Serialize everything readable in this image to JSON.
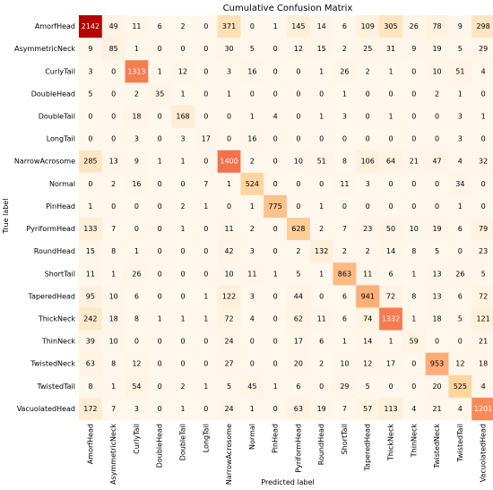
{
  "chart_data": {
    "type": "heatmap",
    "title": "Cumulative Confusion Matrix",
    "xlabel": "Predicted label",
    "ylabel": "True label",
    "labels": [
      "AmorfHead",
      "AsymmetricNeck",
      "CurlyTail",
      "DoubleHead",
      "DoubleTail",
      "LongTail",
      "NarrowAcrosome",
      "Normal",
      "PinHead",
      "PyriformHead",
      "RoundHead",
      "ShortTail",
      "TaperedHead",
      "ThickNeck",
      "ThinNeck",
      "TwistedNeck",
      "TwistedTail",
      "VacuolatedHead"
    ],
    "matrix": [
      [
        2142,
        49,
        11,
        6,
        2,
        0,
        371,
        0,
        1,
        145,
        14,
        6,
        109,
        305,
        26,
        78,
        9,
        298
      ],
      [
        9,
        85,
        1,
        0,
        0,
        0,
        30,
        5,
        0,
        12,
        15,
        2,
        25,
        31,
        9,
        19,
        5,
        29
      ],
      [
        3,
        0,
        1313,
        1,
        12,
        0,
        3,
        16,
        0,
        0,
        1,
        26,
        2,
        1,
        0,
        10,
        51,
        4
      ],
      [
        5,
        0,
        2,
        35,
        1,
        0,
        1,
        0,
        0,
        0,
        0,
        1,
        0,
        0,
        0,
        2,
        1,
        0
      ],
      [
        0,
        0,
        18,
        0,
        168,
        0,
        0,
        1,
        4,
        0,
        1,
        3,
        0,
        1,
        0,
        0,
        3,
        1
      ],
      [
        0,
        0,
        3,
        0,
        3,
        17,
        0,
        16,
        0,
        0,
        0,
        0,
        0,
        0,
        0,
        0,
        3,
        0
      ],
      [
        285,
        13,
        9,
        1,
        1,
        0,
        1400,
        2,
        0,
        10,
        51,
        8,
        106,
        64,
        21,
        47,
        4,
        32
      ],
      [
        0,
        2,
        16,
        0,
        0,
        7,
        1,
        524,
        0,
        0,
        0,
        11,
        3,
        0,
        0,
        0,
        34,
        0
      ],
      [
        1,
        0,
        0,
        0,
        2,
        1,
        0,
        1,
        775,
        0,
        1,
        0,
        0,
        0,
        0,
        0,
        1,
        0
      ],
      [
        133,
        7,
        0,
        0,
        1,
        0,
        11,
        2,
        0,
        628,
        2,
        7,
        23,
        50,
        10,
        19,
        6,
        79
      ],
      [
        15,
        8,
        1,
        0,
        0,
        0,
        42,
        3,
        0,
        2,
        132,
        2,
        2,
        14,
        8,
        5,
        0,
        23
      ],
      [
        11,
        1,
        26,
        0,
        0,
        0,
        10,
        11,
        1,
        5,
        1,
        863,
        11,
        6,
        1,
        13,
        26,
        5
      ],
      [
        95,
        10,
        6,
        0,
        0,
        1,
        122,
        3,
        0,
        44,
        0,
        6,
        941,
        72,
        8,
        13,
        6,
        72
      ],
      [
        242,
        18,
        8,
        1,
        1,
        1,
        72,
        4,
        0,
        62,
        11,
        6,
        74,
        1332,
        1,
        18,
        5,
        121
      ],
      [
        39,
        10,
        0,
        0,
        0,
        0,
        24,
        0,
        0,
        17,
        6,
        1,
        14,
        1,
        59,
        0,
        0,
        21
      ],
      [
        63,
        8,
        12,
        0,
        0,
        0,
        27,
        0,
        0,
        20,
        2,
        10,
        12,
        17,
        0,
        953,
        12,
        18
      ],
      [
        8,
        1,
        54,
        0,
        2,
        1,
        5,
        45,
        1,
        6,
        0,
        29,
        5,
        0,
        0,
        20,
        525,
        4
      ],
      [
        172,
        7,
        3,
        0,
        1,
        0,
        24,
        1,
        0,
        63,
        19,
        7,
        57,
        113,
        4,
        21,
        4,
        1201
      ]
    ],
    "vmin": 0,
    "vmax": 2142,
    "colormap": "OrRd",
    "grid": false
  }
}
